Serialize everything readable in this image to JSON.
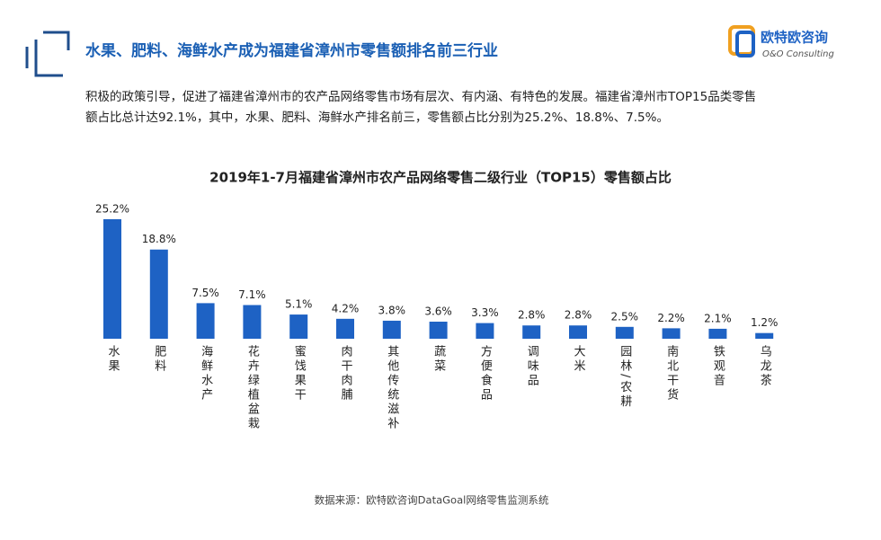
{
  "header": {
    "title": "水果、肥料、海鲜水产成为福建省漳州市零售额排名前三行业",
    "logo": "欧特欧咨询",
    "logo_subtitle": "O&O Consulting",
    "description": [
      "积极的政策引导，促进了福建省漳州市的农产品网络零售市场有层次、有内涵、有特色的发展。福建省漳州市TOP15品类零售",
      "额占比总计达92.1%，其中，水果、肥料、海鲜水产排名前三，零售额占比分别为25.2%、18.8%、7.5%。"
    ]
  },
  "chart_data": {
    "type": "bar",
    "title": "2019年1-7月福建省漳州市农产品网络零售二级行业（TOP15）零售额占比",
    "categories": [
      "水果",
      "肥料",
      "海鲜水产",
      "花卉绿植盆栽",
      "蜜饯果干",
      "肉干肉脯",
      "其他传统滋补",
      "蔬菜",
      "方便食品",
      "调味品",
      "大米",
      "园林/农耕",
      "南北干货",
      "铁观音",
      "乌龙茶"
    ],
    "values": [
      25.2,
      18.8,
      7.5,
      7.1,
      5.1,
      4.2,
      3.8,
      3.6,
      3.3,
      2.8,
      2.8,
      2.5,
      2.2,
      2.1,
      1.2
    ],
    "value_labels": [
      "25.2%",
      "18.8%",
      "7.5%",
      "7.1%",
      "5.1%",
      "4.2%",
      "3.8%",
      "3.6%",
      "3.3%",
      "2.8%",
      "2.8%",
      "2.5%",
      "2.2%",
      "2.1%",
      "1.2%"
    ],
    "color": "#1e62c4",
    "source": "数据来源：欧特欧咨询DataGoal网络零售监测系统"
  }
}
